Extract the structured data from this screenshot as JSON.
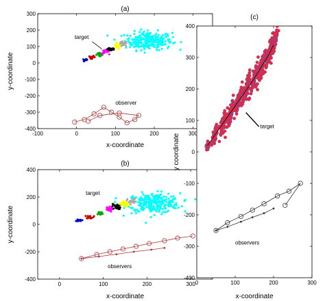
{
  "chart_data": [
    {
      "type": "scatter",
      "title": "(a)",
      "xlabel": "x-coordinate",
      "ylabel": "y-coordinate",
      "xlim": [
        -100,
        350
      ],
      "ylim": [
        -400,
        300
      ],
      "xticks": [
        -100,
        0,
        100,
        200,
        300
      ],
      "yticks": [
        -400,
        -300,
        -200,
        -100,
        0,
        100,
        200,
        300
      ],
      "grid": false,
      "annotations": [
        {
          "text": "target",
          "x": -5,
          "y": 145
        },
        {
          "text": "observer",
          "x": 100,
          "y": -255
        }
      ],
      "series": [
        {
          "role": "target-cloud",
          "color": "#00ffff",
          "clusters": [
            {
              "x": 185,
              "y": 135,
              "sx": 55,
              "sy": 50,
              "n": 260
            }
          ]
        },
        {
          "role": "target-track",
          "colors": [
            "#0000cc",
            "#cc0000",
            "#00aa00",
            "#ff00ff",
            "#000000",
            "#ffff00",
            "#aaaaaa"
          ],
          "clusters": [
            {
              "x": 22,
              "y": 18,
              "sx": 6,
              "sy": 5,
              "n": 14
            },
            {
              "x": 40,
              "y": 35,
              "sx": 8,
              "sy": 8,
              "n": 18
            },
            {
              "x": 58,
              "y": 50,
              "sx": 9,
              "sy": 10,
              "n": 22
            },
            {
              "x": 74,
              "y": 68,
              "sx": 9,
              "sy": 12,
              "n": 24
            },
            {
              "x": 90,
              "y": 85,
              "sx": 10,
              "sy": 14,
              "n": 26
            },
            {
              "x": 105,
              "y": 100,
              "sx": 10,
              "sy": 16,
              "n": 26
            },
            {
              "x": 120,
              "y": 115,
              "sx": 10,
              "sy": 16,
              "n": 26
            }
          ]
        },
        {
          "role": "observer",
          "color": "#aa3333",
          "points": [
            [
              -5,
              -360
            ],
            [
              20,
              -345
            ],
            [
              45,
              -310
            ],
            [
              70,
              -270
            ],
            [
              90,
              -300
            ],
            [
              110,
              -330
            ],
            [
              130,
              -365
            ],
            [
              150,
              -345
            ],
            [
              160,
              -320
            ],
            [
              110,
              -305
            ],
            [
              60,
              -320
            ],
            [
              30,
              -355
            ]
          ]
        }
      ]
    },
    {
      "type": "scatter",
      "title": "(b)",
      "xlabel": "x-coordinate",
      "ylabel": "y-coordinate",
      "xlim": [
        -50,
        350
      ],
      "ylim": [
        -400,
        400
      ],
      "xticks": [
        0,
        100,
        200,
        300
      ],
      "yticks": [
        -400,
        -200,
        0,
        200,
        400
      ],
      "grid": false,
      "annotations": [
        {
          "text": "target",
          "x": 60,
          "y": 215
        },
        {
          "text": "observers",
          "x": 110,
          "y": -320
        }
      ],
      "series": [
        {
          "role": "target-cloud",
          "color": "#00ffff",
          "clusters": [
            {
              "x": 215,
              "y": 155,
              "sx": 55,
              "sy": 65,
              "n": 280
            }
          ]
        },
        {
          "role": "target-track",
          "colors": [
            "#0000cc",
            "#cc0000",
            "#00aa00",
            "#ff00ff",
            "#000000",
            "#ffff00",
            "#aaaaaa"
          ],
          "clusters": [
            {
              "x": 45,
              "y": 30,
              "sx": 6,
              "sy": 8,
              "n": 14
            },
            {
              "x": 70,
              "y": 55,
              "sx": 8,
              "sy": 12,
              "n": 18
            },
            {
              "x": 92,
              "y": 80,
              "sx": 9,
              "sy": 15,
              "n": 22
            },
            {
              "x": 112,
              "y": 110,
              "sx": 9,
              "sy": 17,
              "n": 24
            },
            {
              "x": 130,
              "y": 130,
              "sx": 10,
              "sy": 20,
              "n": 26
            },
            {
              "x": 148,
              "y": 150,
              "sx": 10,
              "sy": 22,
              "n": 26
            },
            {
              "x": 165,
              "y": 170,
              "sx": 10,
              "sy": 22,
              "n": 26
            }
          ]
        },
        {
          "role": "observer",
          "color": "#aa3333",
          "points": [
            [
              50,
              -250
            ],
            [
              85,
              -220
            ],
            [
              115,
              -200
            ],
            [
              145,
              -180
            ],
            [
              175,
              -160
            ],
            [
              205,
              -140
            ],
            [
              240,
              -120
            ],
            [
              270,
              -100
            ],
            [
              305,
              -85
            ]
          ],
          "points2": [
            [
              50,
              -250
            ],
            [
              90,
              -235
            ],
            [
              130,
              -218
            ],
            [
              170,
              -200
            ],
            [
              210,
              -185
            ],
            [
              240,
              -172
            ]
          ]
        }
      ]
    },
    {
      "type": "scatter",
      "title": "(c)",
      "xlabel": "x-coordinate",
      "ylabel": "y coordinate",
      "xlim": [
        0,
        300
      ],
      "ylim": [
        -400,
        400
      ],
      "xticks": [
        0,
        100,
        200,
        300
      ],
      "yticks": [
        -400,
        -300,
        -200,
        -100,
        0,
        100,
        200,
        300,
        400
      ],
      "grid": false,
      "annotations": [
        {
          "text": "target",
          "x": 165,
          "y": 75
        },
        {
          "text": "observers",
          "x": 100,
          "y": -295
        }
      ],
      "series": [
        {
          "role": "target-clusters",
          "color": "#ff2222",
          "edge": "#5555cc",
          "clusters": [
            {
              "x": 28,
              "y": 20,
              "sx": 4,
              "sy": 12,
              "n": 40
            },
            {
              "x": 48,
              "y": 55,
              "sx": 5,
              "sy": 30,
              "n": 60
            },
            {
              "x": 68,
              "y": 90,
              "sx": 5,
              "sy": 38,
              "n": 70
            },
            {
              "x": 88,
              "y": 125,
              "sx": 5,
              "sy": 42,
              "n": 80
            },
            {
              "x": 108,
              "y": 160,
              "sx": 5,
              "sy": 45,
              "n": 80
            },
            {
              "x": 128,
              "y": 195,
              "sx": 5,
              "sy": 48,
              "n": 85
            },
            {
              "x": 148,
              "y": 230,
              "sx": 5,
              "sy": 48,
              "n": 85
            },
            {
              "x": 168,
              "y": 270,
              "sx": 5,
              "sy": 48,
              "n": 85
            },
            {
              "x": 188,
              "y": 310,
              "sx": 5,
              "sy": 48,
              "n": 90
            },
            {
              "x": 200,
              "y": 340,
              "sx": 5,
              "sy": 45,
              "n": 90
            }
          ],
          "centerline": [
            [
              28,
              20
            ],
            [
              48,
              55
            ],
            [
              68,
              90
            ],
            [
              88,
              125
            ],
            [
              108,
              160
            ],
            [
              128,
              195
            ],
            [
              148,
              230
            ],
            [
              168,
              270
            ],
            [
              188,
              310
            ],
            [
              200,
              340
            ]
          ]
        },
        {
          "role": "observer",
          "color": "#333333",
          "points": [
            [
              50,
              -250
            ],
            [
              80,
              -225
            ],
            [
              115,
              -205
            ],
            [
              145,
              -185
            ],
            [
              175,
              -165
            ],
            [
              210,
              -140
            ],
            [
              240,
              -125
            ],
            [
              270,
              -100
            ],
            [
              230,
              -170
            ]
          ],
          "points2": [
            [
              50,
              -250
            ],
            [
              80,
              -238
            ],
            [
              115,
              -222
            ],
            [
              145,
              -208
            ],
            [
              175,
              -195
            ],
            [
              200,
              -180
            ]
          ]
        }
      ]
    }
  ]
}
